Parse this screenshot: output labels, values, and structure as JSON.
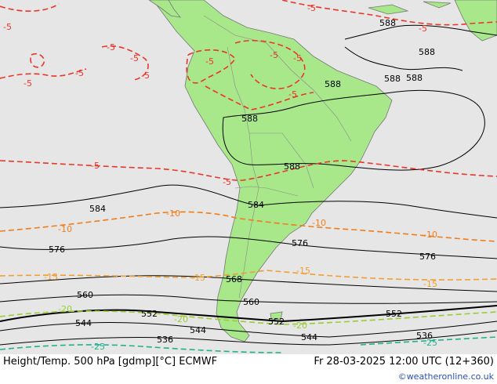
{
  "footer": {
    "title": "Height/Temp. 500 hPa [gdmp][°C] ECMWF",
    "datetime": "Fr 28-03-2025 12:00 UTC (12+360)",
    "credit": "©weatheronline.co.uk"
  },
  "colors": {
    "land": "#a8e88a",
    "sea": "#e6e6e6",
    "height_contour": "#000000",
    "temp_minus5": "#e8372a",
    "temp_minus10": "#f07d1b",
    "temp_minus15": "#f0a030",
    "temp_minus20": "#9acd32",
    "temp_minus25": "#20b38c"
  },
  "map": {
    "height_labels": [
      "588",
      "588",
      "588",
      "588",
      "588",
      "588",
      "588",
      "584",
      "584",
      "576",
      "576",
      "576",
      "568",
      "560",
      "560",
      "552",
      "552",
      "552",
      "544",
      "544",
      "544",
      "536",
      "536"
    ],
    "temp_labels": [
      "-5",
      "-5",
      "-5",
      "-5",
      "-5",
      "-5",
      "-5",
      "-5",
      "-5",
      "-5",
      "-5",
      "-5",
      "-5",
      "-5",
      "-10",
      "-10",
      "-10",
      "-10",
      "-15",
      "-15",
      "-15",
      "-15",
      "-20",
      "-20",
      "-20",
      "-25",
      "-25"
    ]
  }
}
